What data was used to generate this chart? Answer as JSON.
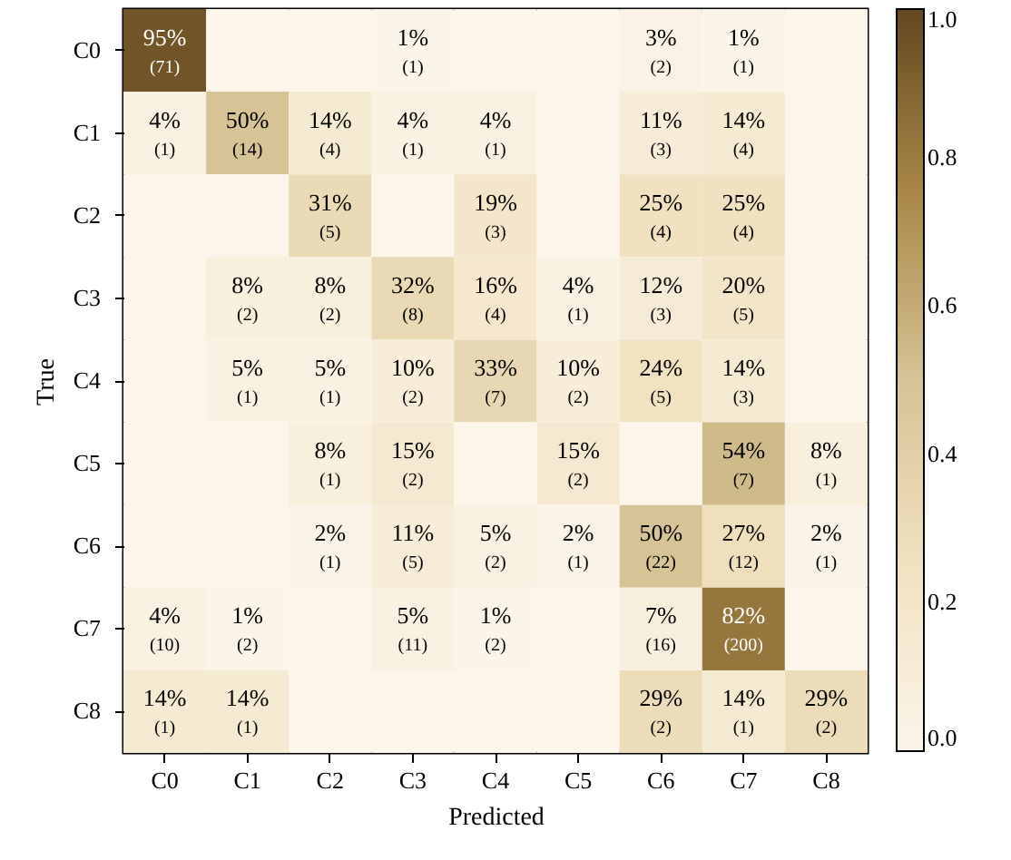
{
  "chart_data": {
    "type": "heatmap",
    "xlabel": "Predicted",
    "ylabel": "True",
    "categories": [
      "C0",
      "C1",
      "C2",
      "C3",
      "C4",
      "C5",
      "C6",
      "C7",
      "C8"
    ],
    "y_categories": [
      "C0",
      "C1",
      "C2",
      "C3",
      "C4",
      "C5",
      "C6",
      "C7",
      "C8"
    ],
    "cells": [
      [
        0.95,
        0,
        0,
        0.01,
        0,
        0,
        0.03,
        0.01,
        0
      ],
      [
        0.04,
        0.5,
        0.14,
        0.04,
        0.04,
        0,
        0.11,
        0.14,
        0
      ],
      [
        0,
        0,
        0.31,
        0,
        0.19,
        0,
        0.25,
        0.25,
        0
      ],
      [
        0,
        0.08,
        0.08,
        0.32,
        0.16,
        0.04,
        0.12,
        0.2,
        0
      ],
      [
        0,
        0.05,
        0.05,
        0.1,
        0.33,
        0.1,
        0.24,
        0.14,
        0
      ],
      [
        0,
        0,
        0.08,
        0.15,
        0,
        0.15,
        0,
        0.54,
        0.08
      ],
      [
        0,
        0,
        0.02,
        0.11,
        0.05,
        0.02,
        0.5,
        0.27,
        0.02
      ],
      [
        0.04,
        0.01,
        0,
        0.05,
        0.01,
        0,
        0.07,
        0.82,
        0
      ],
      [
        0.14,
        0.14,
        0,
        0,
        0,
        0,
        0.29,
        0.14,
        0.29
      ]
    ],
    "cell_labels": [
      [
        "95%\n(71)",
        null,
        null,
        "1%\n(1)",
        null,
        null,
        "3%\n(2)",
        "1%\n(1)",
        null
      ],
      [
        "4%\n(1)",
        "50%\n(14)",
        "14%\n(4)",
        "4%\n(1)",
        "4%\n(1)",
        null,
        "11%\n(3)",
        "14%\n(4)",
        null
      ],
      [
        null,
        null,
        "31%\n(5)",
        null,
        "19%\n(3)",
        null,
        "25%\n(4)",
        "25%\n(4)",
        null
      ],
      [
        null,
        "8%\n(2)",
        "8%\n(2)",
        "32%\n(8)",
        "16%\n(4)",
        "4%\n(1)",
        "12%\n(3)",
        "20%\n(5)",
        null
      ],
      [
        null,
        "5%\n(1)",
        "5%\n(1)",
        "10%\n(2)",
        "33%\n(7)",
        "10%\n(2)",
        "24%\n(5)",
        "14%\n(3)",
        null
      ],
      [
        null,
        null,
        "8%\n(1)",
        "15%\n(2)",
        null,
        "15%\n(2)",
        null,
        "54%\n(7)",
        "8%\n(1)"
      ],
      [
        null,
        null,
        "2%\n(1)",
        "11%\n(5)",
        "5%\n(2)",
        "2%\n(1)",
        "50%\n(22)",
        "27%\n(12)",
        "2%\n(1)"
      ],
      [
        "4%\n(10)",
        "1%\n(2)",
        null,
        "5%\n(11)",
        "1%\n(2)",
        null,
        "7%\n(16)",
        "82%\n(200)",
        null
      ],
      [
        "14%\n(1)",
        "14%\n(1)",
        null,
        null,
        null,
        null,
        "29%\n(2)",
        "14%\n(1)",
        "29%\n(2)"
      ]
    ],
    "clim": [
      0,
      1
    ],
    "cticks": [
      {
        "value": 0,
        "label": "0.0"
      },
      {
        "value": 0.2,
        "label": "0.2"
      },
      {
        "value": 0.4,
        "label": "0.4"
      },
      {
        "value": 0.6,
        "label": "0.6"
      },
      {
        "value": 0.8,
        "label": "0.8"
      },
      {
        "value": 1,
        "label": "1.0"
      }
    ]
  }
}
